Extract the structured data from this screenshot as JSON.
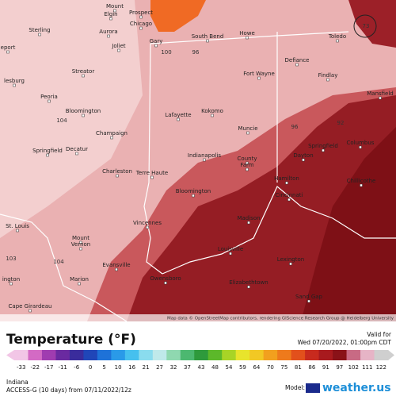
{
  "map": {
    "cities": [
      "Elgin",
      "Mount",
      "Prospect",
      "Chicago",
      "Gary",
      "Sterling",
      "Aurora",
      "Joliet",
      "South Bend",
      "Howe",
      "Toledo",
      "Defiance",
      "eport",
      "Streator",
      "Fort Wayne",
      "Findlay",
      "lesburg",
      "Peoria",
      "Bloomington",
      "Mansfield",
      "Kokomo",
      "Lafayette",
      "Muncie",
      "Champaign",
      "Springfield",
      "Decatur",
      "Indianapolis",
      "Springfield",
      "Columbus",
      "Dayton",
      "County",
      "Farm",
      "Charleston",
      "Terre Haute",
      "Hamilton",
      "Chillicothe",
      "Bloomington",
      "Cincinnati",
      "Vincennes",
      "Madison",
      "St. Louis",
      "Mount",
      "Vernon",
      "Louisville",
      "Lexington",
      "Evansville",
      "Owensboro",
      "Marion",
      "ington",
      "Elizabethtown",
      "Sand Gap",
      "Cape Girardeau"
    ],
    "isotherms": [
      "100",
      "96",
      "104",
      "96",
      "92",
      "103",
      "104",
      "73"
    ],
    "attribution": "Map data © OpenStreetMap contributors, rendering GIScience Research Group @ Heidelberg University"
  },
  "legend": {
    "title": "Temperature (°F)",
    "valid_label": "Valid for",
    "valid_time": "Wed 07/20/2022, 01:00pm CDT",
    "ticks": [
      "-33",
      "-22",
      "-17",
      "-11",
      "-6",
      "0",
      "5",
      "10",
      "16",
      "21",
      "27",
      "32",
      "37",
      "43",
      "48",
      "54",
      "59",
      "64",
      "70",
      "75",
      "81",
      "86",
      "91",
      "97",
      "102",
      "111",
      "122"
    ],
    "colors": [
      "#f2c6e6",
      "#d36ac4",
      "#a03cb0",
      "#6a2aa0",
      "#3a2c9c",
      "#2046b8",
      "#1e72d8",
      "#2a9ae8",
      "#46c0ee",
      "#8adcee",
      "#bfe9ea",
      "#8fd8b0",
      "#4cb870",
      "#2e9a3c",
      "#5cb82a",
      "#a8d426",
      "#e8e42c",
      "#f2c824",
      "#f2a01e",
      "#ee7a1c",
      "#e2501c",
      "#c82a1e",
      "#a81a1e",
      "#8a1218",
      "#c86a84",
      "#e6b4c6",
      "#cfcfcf"
    ]
  },
  "footer": {
    "region": "Indiana",
    "run": "ACCESS-G (10 days) from 07/11/2022/12z",
    "model_label": "Model:",
    "brand": "weather.us"
  }
}
